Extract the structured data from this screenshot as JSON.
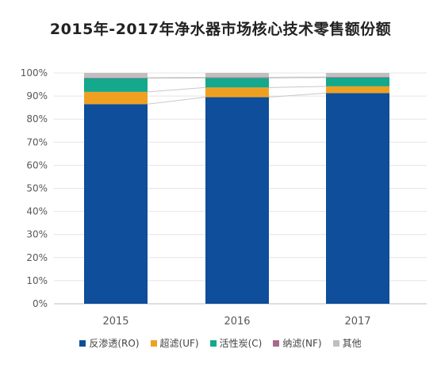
{
  "chart_data": {
    "type": "bar",
    "stacked": true,
    "title": "2015年-2017年净水器市场核心技术零售额份额",
    "categories": [
      "2015",
      "2016",
      "2017"
    ],
    "ylim": [
      0,
      100
    ],
    "yticks": [
      "0%",
      "10%",
      "20%",
      "30%",
      "40%",
      "50%",
      "60%",
      "70%",
      "80%",
      "90%",
      "100%"
    ],
    "series": [
      {
        "name": "反渗透(RO)",
        "color": "#0E4E9A",
        "values": [
          86.5,
          89.5,
          91.3
        ]
      },
      {
        "name": "超滤(UF)",
        "color": "#F0A021",
        "values": [
          5.3,
          4.2,
          2.9
        ]
      },
      {
        "name": "活性炭(C)",
        "color": "#14A88C",
        "values": [
          5.9,
          4.1,
          3.8
        ]
      },
      {
        "name": "纳滤(NF)",
        "color": "#A86A8C",
        "values": [
          0.3,
          0.3,
          0.3
        ]
      },
      {
        "name": "其他",
        "color": "#BFBFBF",
        "values": [
          2.0,
          1.9,
          1.7
        ]
      }
    ],
    "grid": true,
    "legend_position": "bottom"
  }
}
